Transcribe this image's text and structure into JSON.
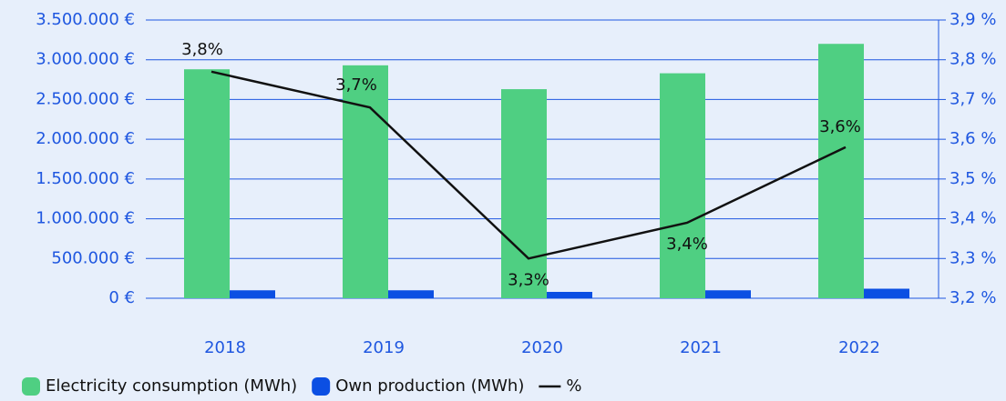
{
  "chart_data": {
    "type": "bar",
    "categories": [
      "2018",
      "2019",
      "2020",
      "2021",
      "2022"
    ],
    "series": [
      {
        "name": "Electricity consumption (MWh)",
        "color": "#4fcf82",
        "values": [
          2880000,
          2930000,
          2630000,
          2830000,
          3200000
        ]
      },
      {
        "name": "Own production (MWh)",
        "color": "#0b4fe3",
        "values": [
          100000,
          100000,
          80000,
          100000,
          120000
        ]
      },
      {
        "name": "%",
        "type": "line",
        "axis": "y2",
        "color": "#111111",
        "values": [
          3.77,
          3.68,
          3.3,
          3.39,
          3.58
        ],
        "value_labels": [
          "3,8%",
          "3,7%",
          "3,3%",
          "3,4%",
          "3,6%"
        ]
      }
    ],
    "ylim": [
      0,
      3500000
    ],
    "yticks": [
      {
        "value": 0,
        "label": "0 €"
      },
      {
        "value": 500000,
        "label": "500.000 €"
      },
      {
        "value": 1000000,
        "label": "1.000.000 €"
      },
      {
        "value": 1500000,
        "label": "1.500.000 €"
      },
      {
        "value": 2000000,
        "label": "2.000.000 €"
      },
      {
        "value": 2500000,
        "label": "2.500.000 €"
      },
      {
        "value": 3000000,
        "label": "3.000.000 €"
      },
      {
        "value": 3500000,
        "label": "3.500.000 €"
      }
    ],
    "y2lim": [
      3.2,
      3.9
    ],
    "y2ticks": [
      {
        "value": 3.2,
        "label": "3,2 %"
      },
      {
        "value": 3.3,
        "label": "3,3 %"
      },
      {
        "value": 3.4,
        "label": "3,4 %"
      },
      {
        "value": 3.5,
        "label": "3,5 %"
      },
      {
        "value": 3.6,
        "label": "3,6 %"
      },
      {
        "value": 3.7,
        "label": "3,7 %"
      },
      {
        "value": 3.8,
        "label": "3,8 %"
      },
      {
        "value": 3.9,
        "label": "3,9 %"
      }
    ],
    "grid": true,
    "legend": "bottom-left"
  }
}
